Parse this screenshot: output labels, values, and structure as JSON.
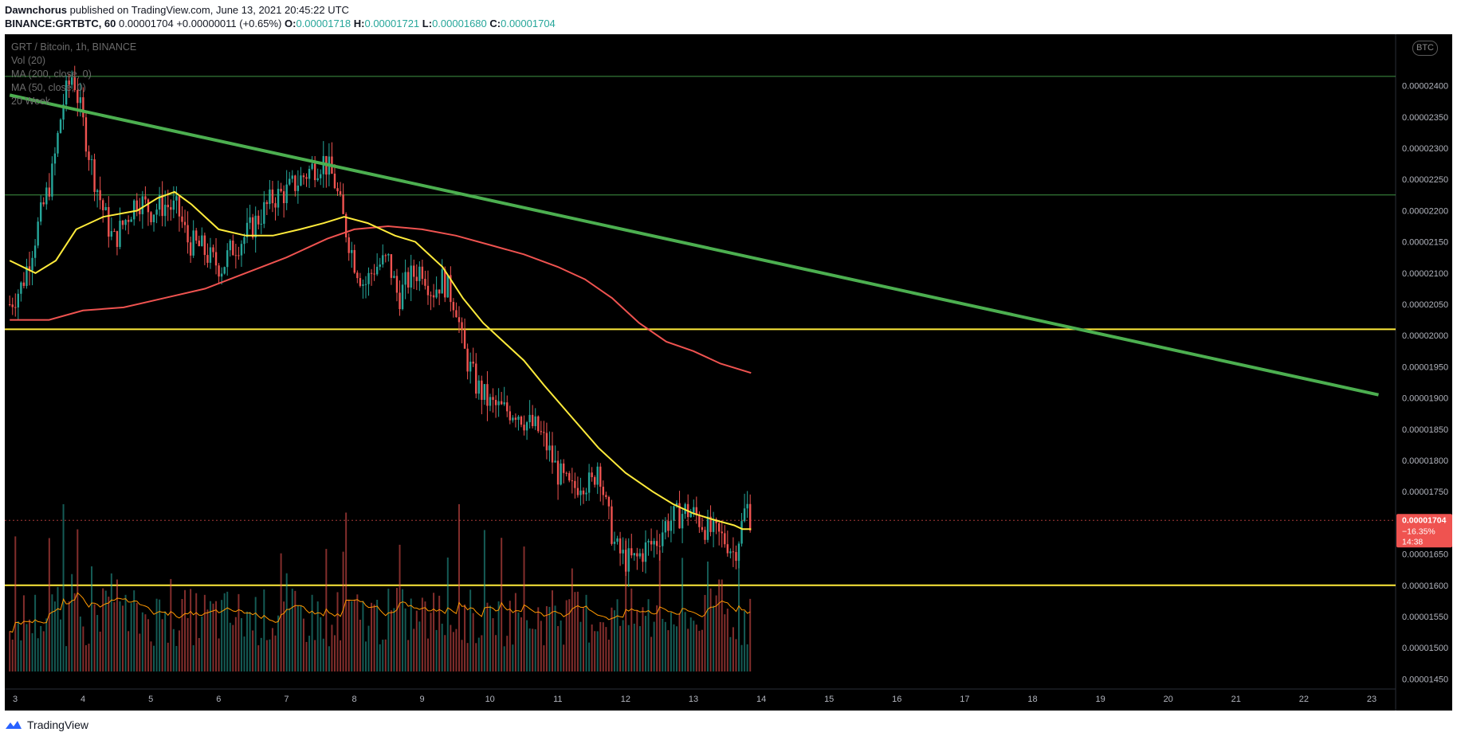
{
  "header": {
    "author": "Dawnchorus",
    "published": "published on TradingView.com, June 13, 2021 20:45:22 UTC",
    "symbol": "BINANCE:GRTBTC, 60",
    "last": "0.00001704",
    "change": "+0.00000011 (+0.65%)",
    "o_label": "O:",
    "o_value": "0.00001718",
    "h_label": "H:",
    "h_value": "0.00001721",
    "l_label": "L:",
    "l_value": "0.00001680",
    "c_label": "C:",
    "c_value": "0.00001704"
  },
  "legend": {
    "title": "GRT / Bitcoin, 1h, BINANCE",
    "vol": "Vol (20)",
    "ma200": "MA (200, close, 0)",
    "ma50": "MA (50, close, 0)",
    "week": "20 Week"
  },
  "currency_badge": "BTC",
  "price_tag": {
    "value": "0.00001704",
    "change_pct": "−16.35%",
    "countdown": "14:38"
  },
  "footer": {
    "brand": "TradingView"
  },
  "colors": {
    "background": "#000000",
    "candle_up": "#26a69a",
    "candle_down": "#ef5350",
    "ma200": "#ef5350",
    "ma50": "#ffeb3b",
    "trendline": "#4caf50",
    "support": "#ffeb3b",
    "axis_text": "#b2b5be"
  },
  "chart_data": {
    "type": "candlestick",
    "title": "GRT / Bitcoin, 1h, BINANCE",
    "y_tick_labels": [
      "0.00002400",
      "0.00002350",
      "0.00002300",
      "0.00002250",
      "0.00002200",
      "0.00002150",
      "0.00002100",
      "0.00002050",
      "0.00002000",
      "0.00001950",
      "0.00001900",
      "0.00001850",
      "0.00001800",
      "0.00001750",
      "0.00001650",
      "0.00001600",
      "0.00001550",
      "0.00001500",
      "0.00001450"
    ],
    "x_tick_labels": [
      "3",
      "4",
      "5",
      "6",
      "7",
      "8",
      "9",
      "10",
      "11",
      "12",
      "13",
      "14",
      "15",
      "16",
      "17",
      "18",
      "19",
      "20",
      "21",
      "22",
      "23"
    ],
    "ylim": [
      1.42e-05,
      2.46e-05
    ],
    "xlim": [
      2.92,
      23.28
    ],
    "price_path": [
      [
        2.92,
        2.05e-05
      ],
      [
        3.1,
        2.08e-05
      ],
      [
        3.25,
        2.14e-05
      ],
      [
        3.4,
        2.2e-05
      ],
      [
        3.55,
        2.26e-05
      ],
      [
        3.7,
        2.37e-05
      ],
      [
        3.85,
        2.42e-05
      ],
      [
        4.0,
        2.34e-05
      ],
      [
        4.15,
        2.26e-05
      ],
      [
        4.3,
        2.2e-05
      ],
      [
        4.45,
        2.15e-05
      ],
      [
        4.6,
        2.18e-05
      ],
      [
        4.8,
        2.22e-05
      ],
      [
        5.0,
        2.2e-05
      ],
      [
        5.2,
        2.21e-05
      ],
      [
        5.4,
        2.2e-05
      ],
      [
        5.55,
        2.15e-05
      ],
      [
        5.75,
        2.14e-05
      ],
      [
        5.9,
        2.12e-05
      ],
      [
        6.05,
        2.11e-05
      ],
      [
        6.2,
        2.14e-05
      ],
      [
        6.4,
        2.16e-05
      ],
      [
        6.6,
        2.19e-05
      ],
      [
        6.8,
        2.22e-05
      ],
      [
        7.0,
        2.23e-05
      ],
      [
        7.2,
        2.25e-05
      ],
      [
        7.4,
        2.27e-05
      ],
      [
        7.55,
        2.28e-05
      ],
      [
        7.7,
        2.25e-05
      ],
      [
        7.85,
        2.18e-05
      ],
      [
        8.0,
        2.12e-05
      ],
      [
        8.15,
        2.08e-05
      ],
      [
        8.3,
        2.11e-05
      ],
      [
        8.5,
        2.12e-05
      ],
      [
        8.65,
        2.06e-05
      ],
      [
        8.8,
        2.09e-05
      ],
      [
        9.0,
        2.11e-05
      ],
      [
        9.15,
        2.07e-05
      ],
      [
        9.3,
        2.09e-05
      ],
      [
        9.5,
        2.05e-05
      ],
      [
        9.6,
        1.98e-05
      ],
      [
        9.8,
        1.92e-05
      ],
      [
        10.0,
        1.89e-05
      ],
      [
        10.2,
        1.88e-05
      ],
      [
        10.4,
        1.88e-05
      ],
      [
        10.55,
        1.86e-05
      ],
      [
        10.7,
        1.85e-05
      ],
      [
        10.85,
        1.82e-05
      ],
      [
        11.0,
        1.78e-05
      ],
      [
        11.2,
        1.75e-05
      ],
      [
        11.35,
        1.77e-05
      ],
      [
        11.5,
        1.76e-05
      ],
      [
        11.6,
        1.8e-05
      ],
      [
        11.7,
        1.73e-05
      ],
      [
        11.85,
        1.66e-05
      ],
      [
        12.0,
        1.64e-05
      ],
      [
        12.15,
        1.64e-05
      ],
      [
        12.3,
        1.66e-05
      ],
      [
        12.45,
        1.67e-05
      ],
      [
        12.6,
        1.7e-05
      ],
      [
        12.75,
        1.71e-05
      ],
      [
        12.9,
        1.72e-05
      ],
      [
        13.05,
        1.71e-05
      ],
      [
        13.2,
        1.69e-05
      ],
      [
        13.35,
        1.68e-05
      ],
      [
        13.5,
        1.67e-05
      ],
      [
        13.6,
        1.65e-05
      ],
      [
        13.7,
        1.69e-05
      ],
      [
        13.78,
        1.73e-05
      ],
      [
        13.85,
        1.704e-05
      ]
    ],
    "ma50_path": [
      [
        2.92,
        2.12e-05
      ],
      [
        3.3,
        2.1e-05
      ],
      [
        3.6,
        2.12e-05
      ],
      [
        3.9,
        2.17e-05
      ],
      [
        4.3,
        2.19e-05
      ],
      [
        4.8,
        2.2e-05
      ],
      [
        5.1,
        2.22e-05
      ],
      [
        5.35,
        2.23e-05
      ],
      [
        5.6,
        2.21e-05
      ],
      [
        6.0,
        2.17e-05
      ],
      [
        6.4,
        2.16e-05
      ],
      [
        6.8,
        2.16e-05
      ],
      [
        7.2,
        2.17e-05
      ],
      [
        7.55,
        2.18e-05
      ],
      [
        7.85,
        2.19e-05
      ],
      [
        8.2,
        2.18e-05
      ],
      [
        8.6,
        2.16e-05
      ],
      [
        8.9,
        2.15e-05
      ],
      [
        9.3,
        2.11e-05
      ],
      [
        9.6,
        2.06e-05
      ],
      [
        9.9,
        2.02e-05
      ],
      [
        10.2,
        1.99e-05
      ],
      [
        10.5,
        1.96e-05
      ],
      [
        10.8,
        1.92e-05
      ],
      [
        11.2,
        1.87e-05
      ],
      [
        11.6,
        1.82e-05
      ],
      [
        12.0,
        1.78e-05
      ],
      [
        12.4,
        1.75e-05
      ],
      [
        12.7,
        1.73e-05
      ],
      [
        13.0,
        1.715e-05
      ],
      [
        13.3,
        1.705e-05
      ],
      [
        13.6,
        1.696e-05
      ],
      [
        13.72,
        1.69e-05
      ],
      [
        13.85,
        1.69e-05
      ]
    ],
    "ma200_path": [
      [
        2.92,
        2.025e-05
      ],
      [
        3.5,
        2.025e-05
      ],
      [
        4.0,
        2.04e-05
      ],
      [
        4.6,
        2.045e-05
      ],
      [
        5.2,
        2.06e-05
      ],
      [
        5.8,
        2.075e-05
      ],
      [
        6.4,
        2.1e-05
      ],
      [
        7.0,
        2.125e-05
      ],
      [
        7.6,
        2.155e-05
      ],
      [
        8.0,
        2.17e-05
      ],
      [
        8.5,
        2.175e-05
      ],
      [
        9.0,
        2.17e-05
      ],
      [
        9.5,
        2.16e-05
      ],
      [
        10.0,
        2.145e-05
      ],
      [
        10.5,
        2.13e-05
      ],
      [
        11.0,
        2.11e-05
      ],
      [
        11.4,
        2.09e-05
      ],
      [
        11.8,
        2.06e-05
      ],
      [
        12.2,
        2.02e-05
      ],
      [
        12.6,
        1.99e-05
      ],
      [
        13.0,
        1.975e-05
      ],
      [
        13.4,
        1.955e-05
      ],
      [
        13.85,
        1.94e-05
      ]
    ],
    "trendline": [
      [
        2.92,
        2.385e-05
      ],
      [
        23.1,
        1.905e-05
      ]
    ],
    "horizontal_lines": [
      {
        "kind": "resistance",
        "color": "green-thin",
        "price": 2.415e-05
      },
      {
        "kind": "resistance",
        "color": "green-thin",
        "price": 2.225e-05
      },
      {
        "kind": "support",
        "color": "yellow",
        "price": 2.01e-05
      },
      {
        "kind": "support",
        "color": "yellow",
        "price": 1.6e-05
      }
    ],
    "last_price": 1.704e-05
  }
}
